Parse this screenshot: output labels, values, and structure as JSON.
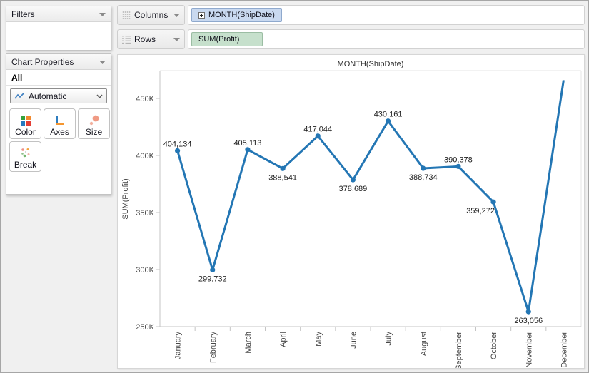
{
  "window": {
    "background": "#f0f0f0"
  },
  "sidebar": {
    "filters_panel": {
      "title": "Filters"
    },
    "chart_properties_panel": {
      "title": "Chart Properties",
      "scope_label": "All",
      "mark_type_dropdown": {
        "value": "Automatic"
      },
      "buttons": [
        {
          "label": "Color"
        },
        {
          "label": "Axes"
        },
        {
          "label": "Size"
        },
        {
          "label": "Break"
        }
      ]
    }
  },
  "shelves": {
    "columns": {
      "label": "Columns",
      "pill": {
        "text": "MONTH(ShipDate)",
        "bg": "#c9d9f0",
        "border": "#8fa9cd"
      }
    },
    "rows": {
      "label": "Rows",
      "pill": {
        "text": "SUM(Profit)",
        "bg": "#c6e0cc",
        "border": "#9bbda3"
      }
    }
  },
  "chart_data": {
    "type": "line",
    "title": "MONTH(ShipDate)",
    "ylabel": "SUM(Profit)",
    "categories": [
      "January",
      "February",
      "March",
      "April",
      "May",
      "June",
      "July",
      "August",
      "September",
      "October",
      "November",
      "December"
    ],
    "values": [
      404134,
      299732,
      405113,
      388541,
      417044,
      378689,
      430161,
      388734,
      390378,
      359272,
      263056,
      466000
    ],
    "point_labels": [
      "404,134",
      "299,732",
      "405,113",
      "388,541",
      "417,044",
      "378,689",
      "430,161",
      "388,734",
      "390,378",
      "359,272",
      "263,056",
      ""
    ],
    "label_position": [
      "above",
      "below",
      "above",
      "below",
      "above",
      "below",
      "above",
      "below",
      "above",
      "below",
      "below",
      ""
    ],
    "label_dx": [
      0,
      0,
      0,
      0,
      0,
      0,
      0,
      0,
      0,
      -18,
      0,
      0
    ],
    "show_marker": [
      true,
      true,
      true,
      true,
      true,
      true,
      true,
      true,
      true,
      true,
      true,
      false
    ],
    "y_ticks": [
      {
        "value": 250000,
        "label": "250K"
      },
      {
        "value": 300000,
        "label": "300K"
      },
      {
        "value": 350000,
        "label": "350K"
      },
      {
        "value": 400000,
        "label": "400K"
      },
      {
        "value": 450000,
        "label": "450K"
      }
    ],
    "ylim": [
      250000,
      474375
    ],
    "line_color": "#2376b4",
    "grid": false,
    "legend": "none",
    "note": "December point rises off the top of the plot; its marker and value label are not shown in the image (value estimated from line endpoint)."
  }
}
